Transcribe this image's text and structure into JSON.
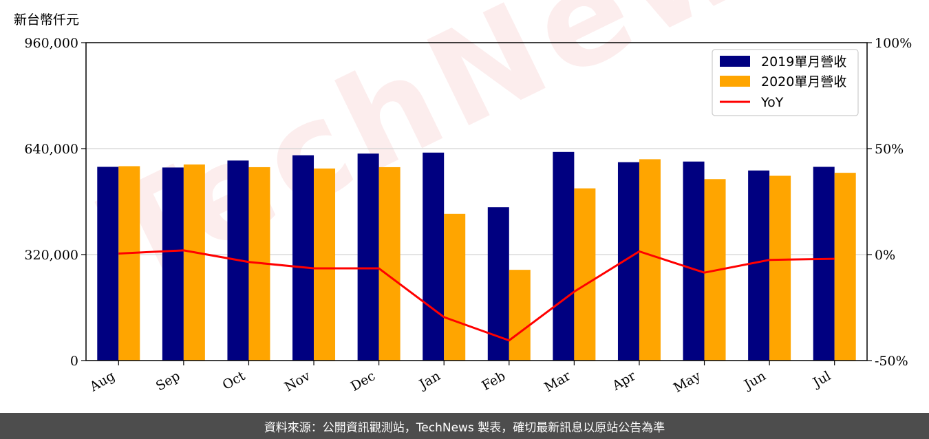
{
  "unit_label": "新台幣仟元",
  "watermark": "TechNews",
  "footer_text": "資料來源：公開資訊觀測站，TechNews 製表，確切最新訊息以原站公告為準",
  "colors": {
    "series_2019": "#000080",
    "series_2020": "#FFA500",
    "yoy": "#FF0000",
    "grid": "#d3d3d3",
    "footer_bg": "#4d4d4d"
  },
  "chart_data": {
    "type": "bar",
    "title": "",
    "xlabel": "",
    "ylabel": "新台幣仟元",
    "categories": [
      "Aug",
      "Sep",
      "Oct",
      "Nov",
      "Dec",
      "Jan",
      "Feb",
      "Mar",
      "Apr",
      "May",
      "Jun",
      "Jul"
    ],
    "series": [
      {
        "name": "2019單月營收",
        "type": "bar",
        "axis": "left",
        "values": [
          585000,
          583000,
          604000,
          620000,
          625000,
          628000,
          463000,
          630000,
          599000,
          601000,
          574000,
          585000
        ]
      },
      {
        "name": "2020單月營收",
        "type": "bar",
        "axis": "left",
        "values": [
          587000,
          592000,
          584000,
          580000,
          584000,
          443000,
          274000,
          520000,
          608000,
          548000,
          558000,
          567000
        ]
      },
      {
        "name": "YoY",
        "type": "line",
        "axis": "right",
        "values": [
          0.5,
          2.0,
          -3.5,
          -6.5,
          -6.5,
          -29.5,
          -40.5,
          -17.5,
          1.5,
          -8.5,
          -2.5,
          -2.0
        ]
      }
    ],
    "ylim": [
      0,
      960000
    ],
    "y_ticks": [
      "0",
      "320,000",
      "640,000",
      "960,000"
    ],
    "y_tick_values": [
      0,
      320000,
      640000,
      960000
    ],
    "y2lim": [
      -50,
      100
    ],
    "y2_ticks": [
      "-50%",
      "0%",
      "50%",
      "100%"
    ],
    "y2_tick_values": [
      -50,
      0,
      50,
      100
    ],
    "grid": "horizontal",
    "legend_position": "top-right"
  }
}
